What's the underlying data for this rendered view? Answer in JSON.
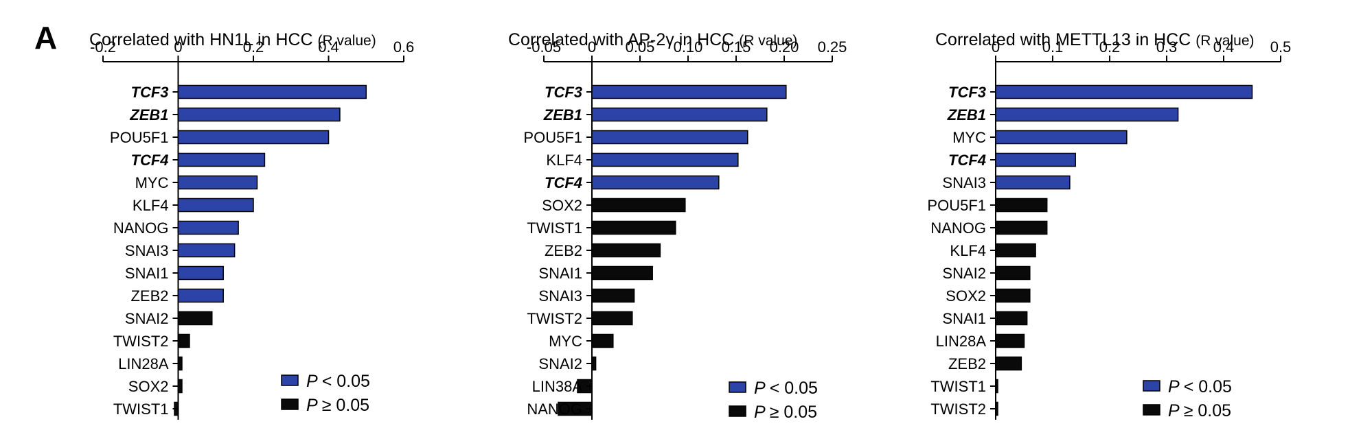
{
  "panel_label": "A",
  "colors": {
    "significant": "#2c44a8",
    "not_significant": "#0a0a0a",
    "axis": "#000000"
  },
  "legend": {
    "significant_label": "< 0.05",
    "not_significant_label": "≥ 0.05",
    "p_symbol": "P"
  },
  "chart_data": [
    {
      "type": "bar",
      "orientation": "horizontal",
      "title": "Correlated with HN1L in HCC",
      "title_suffix": "(R value)",
      "xlim": [
        -0.2,
        0.6
      ],
      "ticks": [
        -0.2,
        0,
        0.2,
        0.4,
        0.6
      ],
      "tick_labels": [
        "-0.2",
        "0",
        "0.2",
        "0.4",
        "0.6"
      ],
      "categories": [
        "TCF3",
        "ZEB1",
        "POU5F1",
        "TCF4",
        "MYC",
        "KLF4",
        "NANOG",
        "SNAI3",
        "SNAI1",
        "ZEB2",
        "SNAI2",
        "TWIST2",
        "LIN28A",
        "SOX2",
        "TWIST1"
      ],
      "values": [
        0.5,
        0.43,
        0.4,
        0.23,
        0.21,
        0.2,
        0.16,
        0.15,
        0.12,
        0.12,
        0.09,
        0.03,
        0.01,
        0.01,
        -0.01
      ],
      "significant": [
        true,
        true,
        true,
        true,
        true,
        true,
        true,
        true,
        true,
        true,
        false,
        false,
        false,
        false,
        false
      ],
      "emphasized": [
        true,
        true,
        false,
        true,
        false,
        false,
        false,
        false,
        false,
        false,
        false,
        false,
        false,
        false,
        false
      ]
    },
    {
      "type": "bar",
      "orientation": "horizontal",
      "title": "Correlated with AP-2γ in HCC",
      "title_suffix": "(R value)",
      "xlim": [
        -0.05,
        0.25
      ],
      "ticks": [
        -0.05,
        0,
        0.05,
        0.1,
        0.15,
        0.2,
        0.25
      ],
      "tick_labels": [
        "-0.05",
        "0",
        "0.05",
        "0.10",
        "0.15",
        "0.20",
        "0.25"
      ],
      "categories": [
        "TCF3",
        "ZEB1",
        "POU5F1",
        "KLF4",
        "TCF4",
        "SOX2",
        "TWIST1",
        "ZEB2",
        "SNAI1",
        "SNAI3",
        "TWIST2",
        "MYC",
        "SNAI2",
        "LIN38A",
        "NANOG"
      ],
      "values": [
        0.202,
        0.182,
        0.162,
        0.152,
        0.132,
        0.097,
        0.087,
        0.071,
        0.063,
        0.044,
        0.042,
        0.022,
        0.004,
        -0.015,
        -0.035
      ],
      "significant": [
        true,
        true,
        true,
        true,
        true,
        false,
        false,
        false,
        false,
        false,
        false,
        false,
        false,
        false,
        false
      ],
      "emphasized": [
        true,
        true,
        false,
        false,
        true,
        false,
        false,
        false,
        false,
        false,
        false,
        false,
        false,
        false,
        false
      ]
    },
    {
      "type": "bar",
      "orientation": "horizontal",
      "title": "Correlated with METTL13 in HCC",
      "title_suffix": "(R value)",
      "xlim": [
        0,
        0.5
      ],
      "ticks": [
        0,
        0.1,
        0.2,
        0.3,
        0.4,
        0.5
      ],
      "tick_labels": [
        "0",
        "0.1",
        "0.2",
        "0.3",
        "0.4",
        "0.5"
      ],
      "categories": [
        "TCF3",
        "ZEB1",
        "MYC",
        "TCF4",
        "SNAI3",
        "POU5F1",
        "NANOG",
        "KLF4",
        "SNAI2",
        "SOX2",
        "SNAI1",
        "LIN28A",
        "ZEB2",
        "TWIST1",
        "TWIST2"
      ],
      "values": [
        0.45,
        0.32,
        0.23,
        0.14,
        0.13,
        0.09,
        0.09,
        0.07,
        0.06,
        0.06,
        0.055,
        0.05,
        0.045,
        0.003,
        0.002
      ],
      "significant": [
        true,
        true,
        true,
        true,
        true,
        false,
        false,
        false,
        false,
        false,
        false,
        false,
        false,
        false,
        false
      ],
      "emphasized": [
        true,
        true,
        false,
        true,
        false,
        false,
        false,
        false,
        false,
        false,
        false,
        false,
        false,
        false,
        false
      ]
    }
  ]
}
